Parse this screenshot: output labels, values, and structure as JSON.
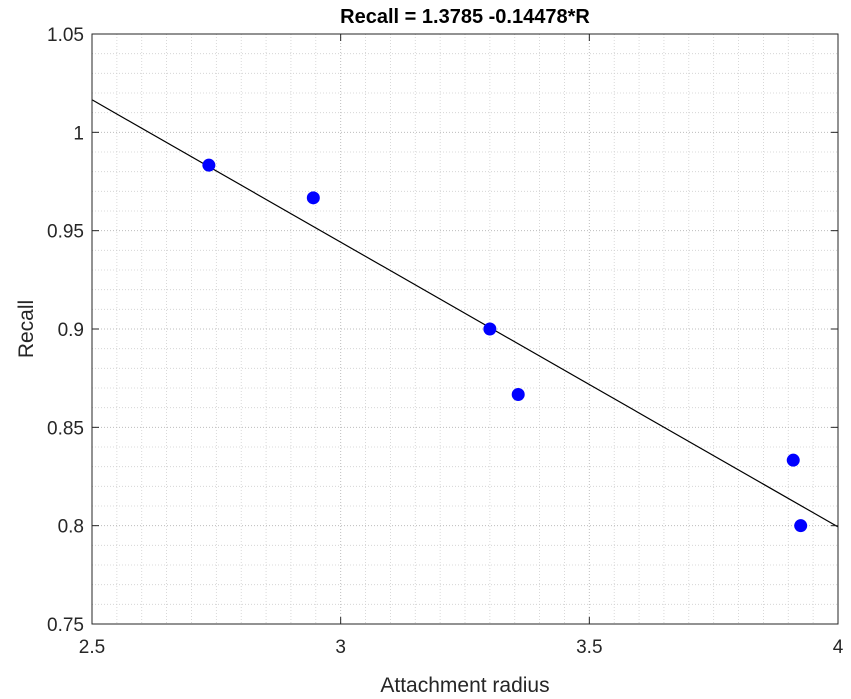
{
  "chart_data": {
    "type": "scatter",
    "title": "Recall = 1.3785 -0.14478*R",
    "xlabel": "Attachment radius",
    "ylabel": "Recall",
    "xlim": [
      2.5,
      4
    ],
    "ylim": [
      0.75,
      1.05
    ],
    "xticks": [
      2.5,
      3,
      3.5,
      4
    ],
    "xtick_labels": [
      "2.5",
      "3",
      "3.5",
      "4"
    ],
    "yticks": [
      0.75,
      0.8,
      0.85,
      0.9,
      0.95,
      1,
      1.05
    ],
    "ytick_labels": [
      "0.75",
      "0.8",
      "0.85",
      "0.9",
      "0.95",
      "1",
      "1.05"
    ],
    "grid": true,
    "minor_grid": true,
    "series": [
      {
        "type": "scatter",
        "color": "#0000ff",
        "x": [
          2.735,
          2.945,
          3.3,
          3.357,
          3.91,
          3.925
        ],
        "y": [
          0.9833,
          0.9667,
          0.9,
          0.8667,
          0.8333,
          0.8
        ]
      },
      {
        "type": "line",
        "color": "#000000",
        "fit": {
          "intercept": 1.3785,
          "slope": -0.14478
        }
      }
    ]
  }
}
